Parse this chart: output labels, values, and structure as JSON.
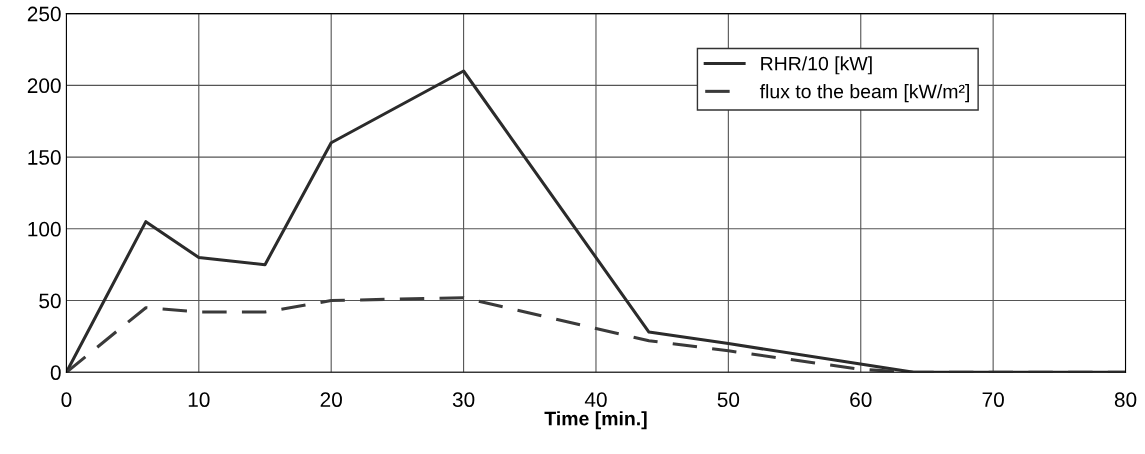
{
  "chart_data": {
    "type": "line",
    "xlabel": "Time [min.]",
    "xlim": [
      0,
      80
    ],
    "xticks": [
      0,
      10,
      20,
      30,
      40,
      50,
      60,
      70,
      80
    ],
    "ylim": [
      0,
      250
    ],
    "yticks": [
      0,
      50,
      100,
      150,
      200,
      250
    ],
    "grid": true,
    "legend": "top right",
    "series": [
      {
        "name": "RHR/10 [kW]",
        "color": "#2b2b2b",
        "line_style": "solid",
        "x": [
          0,
          6,
          10,
          15,
          20,
          30,
          44,
          50,
          64,
          80
        ],
        "values": [
          0,
          105,
          80,
          75,
          160,
          210,
          28,
          20,
          0,
          0
        ]
      },
      {
        "name": "flux to the beam [kW/m²]",
        "color": "#3a3a3a",
        "line_style": "dashed",
        "x": [
          0,
          6,
          10,
          15,
          20,
          30,
          44,
          50,
          60,
          64,
          80
        ],
        "values": [
          0,
          45,
          42,
          42,
          50,
          52,
          22,
          15,
          2,
          0,
          0
        ]
      }
    ]
  }
}
